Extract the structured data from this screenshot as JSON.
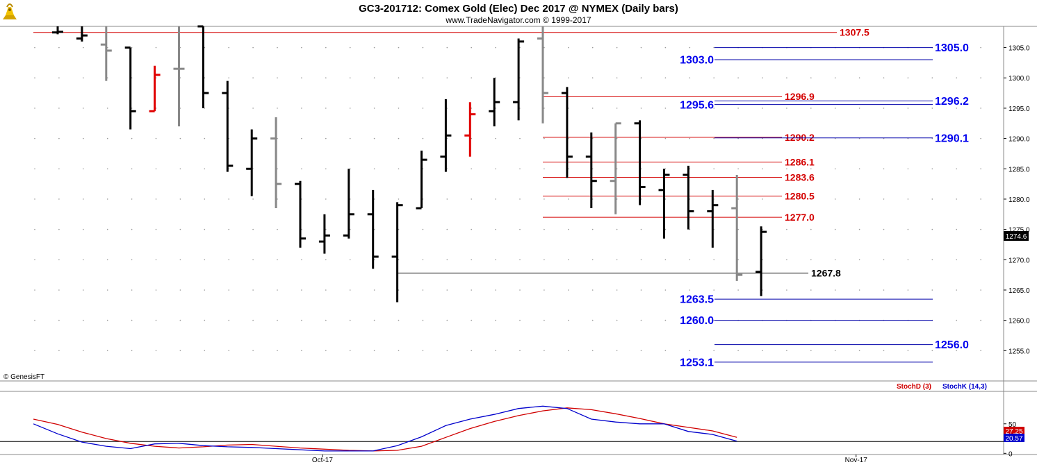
{
  "header": {
    "title": "GC3-201712:  Comex Gold (Elec) Dec 2017 @ NYMEX  (Daily bars)",
    "subtitle": "www.TradeNavigator.com © 1999-2017"
  },
  "watermark": "© GenesisFT",
  "logo_icon": "gold-bull-logo-icon",
  "colors": {
    "up_bar": "#000000",
    "down_bar": "#888888",
    "highlight_bar": "#e00000",
    "resistance_line": "#d40000",
    "support_line": "#0000aa",
    "support_label": "#0000ee",
    "stoch_d": "#d00000",
    "stoch_k": "#0000cc"
  },
  "chart_data": [
    {
      "type": "ohlc",
      "title": "GC3-201712:  Comex Gold (Elec) Dec 2017 @ NYMEX  (Daily bars)",
      "ylim": [
        1250,
        1308.5
      ],
      "y_ticks": [
        1255,
        1260,
        1265,
        1270,
        1275,
        1280,
        1285,
        1290,
        1295,
        1300,
        1305
      ],
      "x_tick_labels": [
        {
          "index": 11,
          "label": "Oct-17"
        },
        {
          "index": 33,
          "label": "Nov-17"
        }
      ],
      "last_price_label": "1274.6",
      "bars": [
        {
          "o": 1307.5,
          "h": 1308.5,
          "l": 1307.2,
          "c": 1307.6,
          "color": "black"
        },
        {
          "o": 1306.5,
          "h": 1309.0,
          "l": 1306.0,
          "c": 1307.0,
          "color": "black"
        },
        {
          "o": 1305.5,
          "h": 1308.5,
          "l": 1299.5,
          "c": 1304.5,
          "color": "gray"
        },
        {
          "o": 1305.0,
          "h": 1305.0,
          "l": 1291.5,
          "c": 1294.5,
          "color": "black"
        },
        {
          "o": 1294.5,
          "h": 1302.0,
          "l": 1294.5,
          "c": 1300.5,
          "color": "red"
        },
        {
          "o": 1301.5,
          "h": 1308.5,
          "l": 1292.0,
          "c": 1301.5,
          "color": "gray"
        },
        {
          "o": 1308.5,
          "h": 1308.5,
          "l": 1295.0,
          "c": 1297.5,
          "color": "black"
        },
        {
          "o": 1297.5,
          "h": 1299.5,
          "l": 1284.5,
          "c": 1285.5,
          "color": "black"
        },
        {
          "o": 1285.0,
          "h": 1291.5,
          "l": 1280.5,
          "c": 1290.0,
          "color": "black"
        },
        {
          "o": 1290.0,
          "h": 1293.5,
          "l": 1278.5,
          "c": 1282.5,
          "color": "gray"
        },
        {
          "o": 1282.5,
          "h": 1283.0,
          "l": 1272.0,
          "c": 1273.5,
          "color": "black"
        },
        {
          "o": 1273.0,
          "h": 1277.5,
          "l": 1271.0,
          "c": 1274.0,
          "color": "black"
        },
        {
          "o": 1274.0,
          "h": 1285.0,
          "l": 1273.5,
          "c": 1277.5,
          "color": "black"
        },
        {
          "o": 1277.5,
          "h": 1281.5,
          "l": 1268.5,
          "c": 1270.5,
          "color": "black"
        },
        {
          "o": 1270.5,
          "h": 1279.5,
          "l": 1263.0,
          "c": 1279.0,
          "color": "black"
        },
        {
          "o": 1278.5,
          "h": 1288.0,
          "l": 1278.5,
          "c": 1286.5,
          "color": "black"
        },
        {
          "o": 1287.0,
          "h": 1296.5,
          "l": 1284.5,
          "c": 1290.5,
          "color": "black"
        },
        {
          "o": 1290.5,
          "h": 1296.0,
          "l": 1287.0,
          "c": 1294.0,
          "color": "red"
        },
        {
          "o": 1294.5,
          "h": 1300.0,
          "l": 1292.0,
          "c": 1296.0,
          "color": "black"
        },
        {
          "o": 1296.0,
          "h": 1306.5,
          "l": 1293.0,
          "c": 1306.0,
          "color": "black"
        },
        {
          "o": 1306.5,
          "h": 1309.0,
          "l": 1292.5,
          "c": 1297.5,
          "color": "gray"
        },
        {
          "o": 1297.5,
          "h": 1298.5,
          "l": 1283.5,
          "c": 1287.0,
          "color": "black"
        },
        {
          "o": 1287.0,
          "h": 1291.0,
          "l": 1278.5,
          "c": 1283.0,
          "color": "black"
        },
        {
          "o": 1283.0,
          "h": 1292.5,
          "l": 1277.5,
          "c": 1292.5,
          "color": "gray"
        },
        {
          "o": 1292.5,
          "h": 1293.0,
          "l": 1279.0,
          "c": 1282.0,
          "color": "black"
        },
        {
          "o": 1281.5,
          "h": 1285.0,
          "l": 1273.5,
          "c": 1284.0,
          "color": "black"
        },
        {
          "o": 1284.0,
          "h": 1285.5,
          "l": 1275.0,
          "c": 1278.0,
          "color": "black"
        },
        {
          "o": 1278.0,
          "h": 1281.5,
          "l": 1272.0,
          "c": 1279.0,
          "color": "black"
        },
        {
          "o": 1278.5,
          "h": 1284.0,
          "l": 1266.5,
          "c": 1267.5,
          "color": "gray"
        },
        {
          "o": 1268.0,
          "h": 1275.5,
          "l": 1264.0,
          "c": 1274.6,
          "color": "black"
        }
      ],
      "levels": [
        {
          "value": 1307.5,
          "label": "1307.5",
          "kind": "resistance",
          "from": 0,
          "to": "far",
          "label_side": "right"
        },
        {
          "value": 1296.9,
          "label": "1296.9",
          "kind": "resistance",
          "from": 20,
          "to": "mid",
          "label_side": "right"
        },
        {
          "value": 1290.2,
          "label": "1290.2",
          "kind": "resistance",
          "from": 20,
          "to": "mid",
          "label_side": "right"
        },
        {
          "value": 1286.1,
          "label": "1286.1",
          "kind": "resistance",
          "from": 20,
          "to": "mid",
          "label_side": "right"
        },
        {
          "value": 1283.6,
          "label": "1283.6",
          "kind": "resistance",
          "from": 20,
          "to": "mid",
          "label_side": "right"
        },
        {
          "value": 1280.5,
          "label": "1280.5",
          "kind": "resistance",
          "from": 20,
          "to": "mid",
          "label_side": "right"
        },
        {
          "value": 1277.0,
          "label": "1277.0",
          "kind": "resistance",
          "from": 20,
          "to": "mid",
          "label_side": "right"
        },
        {
          "value": 1267.8,
          "label": "1267.8",
          "kind": "pivot",
          "from": 14,
          "to": "mid",
          "label_side": "right"
        },
        {
          "value": 1305.0,
          "label": "1305.0",
          "kind": "support",
          "from": "band",
          "to": "far",
          "label_side": "right"
        },
        {
          "value": 1303.0,
          "label": "1303.0",
          "kind": "support",
          "from": "band",
          "to": "far",
          "label_side": "left"
        },
        {
          "value": 1296.2,
          "label": "1296.2",
          "kind": "support",
          "from": "band",
          "to": "far",
          "label_side": "right"
        },
        {
          "value": 1295.6,
          "label": "1295.6",
          "kind": "support",
          "from": "band",
          "to": "far",
          "label_side": "left"
        },
        {
          "value": 1290.1,
          "label": "1290.1",
          "kind": "support",
          "from": "band",
          "to": "far",
          "label_side": "right"
        },
        {
          "value": 1263.5,
          "label": "1263.5",
          "kind": "support",
          "from": "band",
          "to": "far",
          "label_side": "left"
        },
        {
          "value": 1260.0,
          "label": "1260.0",
          "kind": "support",
          "from": "band",
          "to": "far",
          "label_side": "left"
        },
        {
          "value": 1256.0,
          "label": "1256.0",
          "kind": "support",
          "from": "band",
          "to": "far",
          "label_side": "right"
        },
        {
          "value": 1253.1,
          "label": "1253.1",
          "kind": "support",
          "from": "band",
          "to": "far",
          "label_side": "left"
        }
      ]
    },
    {
      "type": "line",
      "ylim": [
        -2,
        105
      ],
      "y_ticks": [
        0,
        50
      ],
      "reference_line": 20,
      "value_labels": [
        "27.25",
        "20.57"
      ],
      "series": [
        {
          "name": "StochD (3)",
          "color": "#d00000",
          "values": [
            58,
            49,
            36,
            25,
            17,
            12,
            9,
            11,
            14,
            15,
            12,
            9,
            7,
            5,
            4,
            5,
            12,
            27,
            42,
            54,
            64,
            72,
            77,
            74,
            67,
            59,
            50,
            44,
            38,
            27
          ]
        },
        {
          "name": "StochK (14,3)",
          "color": "#0000cc",
          "values": [
            50,
            33,
            19,
            12,
            8,
            16,
            17,
            13,
            11,
            10,
            8,
            6,
            4,
            4,
            4,
            13,
            28,
            47,
            58,
            66,
            76,
            80,
            76,
            58,
            53,
            50,
            50,
            37,
            32,
            20.57
          ]
        }
      ]
    }
  ]
}
